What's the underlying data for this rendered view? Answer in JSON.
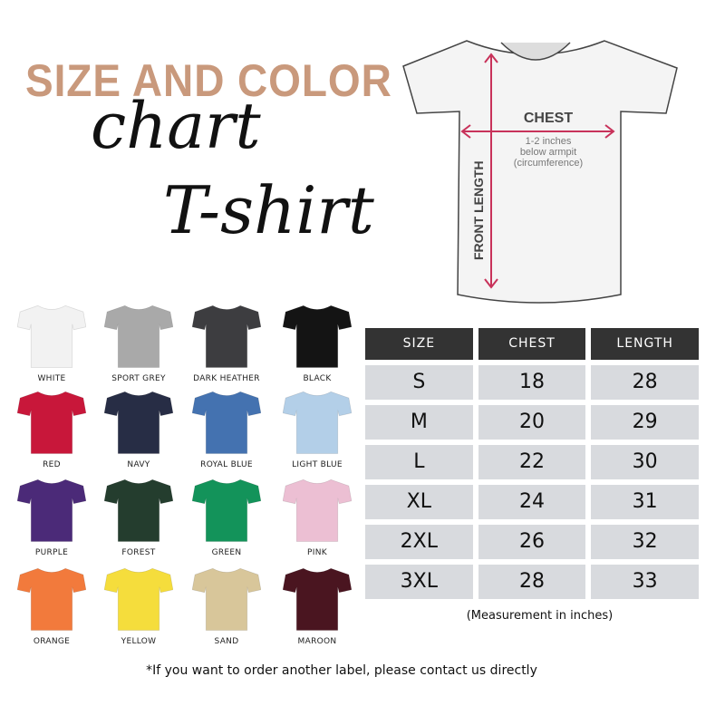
{
  "title": {
    "line1": "SIZE AND COLOR",
    "line2": "chart",
    "line3": "T-shirt",
    "accent": "#c9997c"
  },
  "diagram": {
    "chest": "CHEST",
    "chest_note1": "1-2 inches",
    "chest_note2": "below armpit",
    "chest_note3": "(circumference)",
    "length": "FRONT LENGTH",
    "arrow_color": "#c8325a"
  },
  "colors": [
    {
      "name": "WHITE",
      "hex": "#f2f2f2"
    },
    {
      "name": "SPORT GREY",
      "hex": "#a9a9a9"
    },
    {
      "name": "DARK HEATHER",
      "hex": "#3d3d40"
    },
    {
      "name": "BLACK",
      "hex": "#141414"
    },
    {
      "name": "RED",
      "hex": "#c8173a"
    },
    {
      "name": "NAVY",
      "hex": "#272d45"
    },
    {
      "name": "ROYAL BLUE",
      "hex": "#4472b0"
    },
    {
      "name": "LIGHT BLUE",
      "hex": "#b3cfe8"
    },
    {
      "name": "PURPLE",
      "hex": "#4b2a78"
    },
    {
      "name": "FOREST",
      "hex": "#243d2e"
    },
    {
      "name": "GREEN",
      "hex": "#13935a"
    },
    {
      "name": "PINK",
      "hex": "#ecbfd3"
    },
    {
      "name": "ORANGE",
      "hex": "#f27a3c"
    },
    {
      "name": "YELLOW",
      "hex": "#f5dd3c"
    },
    {
      "name": "SAND",
      "hex": "#d8c69a"
    },
    {
      "name": "MAROON",
      "hex": "#4a1520"
    }
  ],
  "table": {
    "headers": [
      "SIZE",
      "CHEST",
      "LENGTH"
    ],
    "rows": [
      [
        "S",
        "18",
        "28"
      ],
      [
        "M",
        "20",
        "29"
      ],
      [
        "L",
        "22",
        "30"
      ],
      [
        "XL",
        "24",
        "31"
      ],
      [
        "2XL",
        "26",
        "32"
      ],
      [
        "3XL",
        "28",
        "33"
      ]
    ],
    "caption": "(Measurement in inches)"
  },
  "footnote": "*If you want to order another label, please contact us directly"
}
